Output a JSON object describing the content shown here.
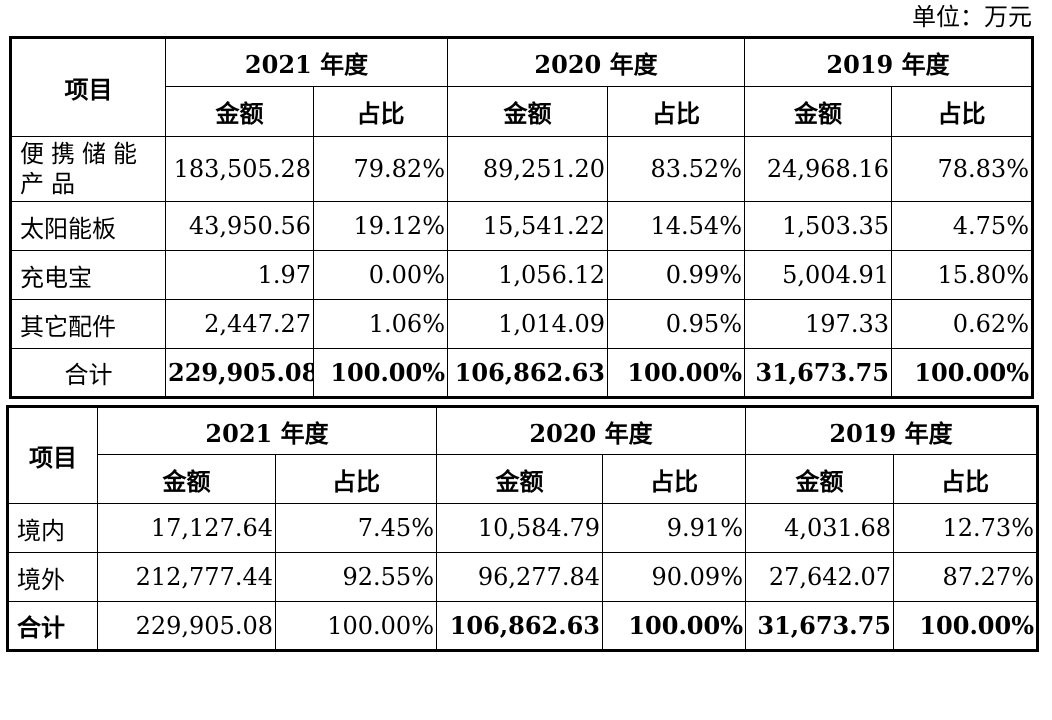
{
  "unit_label": "单位：万元",
  "table1": {
    "header": {
      "item": "项目",
      "years": [
        "2021 年度",
        "2020 年度",
        "2019 年度"
      ],
      "amount": "金额",
      "ratio": "占比"
    },
    "rows": [
      {
        "label": "便携储能产品",
        "values": [
          "183,505.28",
          "79.82%",
          "89,251.20",
          "83.52%",
          "24,968.16",
          "78.83%"
        ]
      },
      {
        "label": "太阳能板",
        "values": [
          "43,950.56",
          "19.12%",
          "15,541.22",
          "14.54%",
          "1,503.35",
          "4.75%"
        ]
      },
      {
        "label": "充电宝",
        "values": [
          "1.97",
          "0.00%",
          "1,056.12",
          "0.99%",
          "5,004.91",
          "15.80%"
        ]
      },
      {
        "label": "其它配件",
        "values": [
          "2,447.27",
          "1.06%",
          "1,014.09",
          "0.95%",
          "197.33",
          "0.62%"
        ]
      }
    ],
    "total": {
      "label": "合计",
      "values": [
        "229,905.08",
        "100.00%",
        "106,862.63",
        "100.00%",
        "31,673.75",
        "100.00%"
      ]
    }
  },
  "table2": {
    "header": {
      "item": "项目",
      "years": [
        "2021 年度",
        "2020 年度",
        "2019 年度"
      ],
      "amount": "金额",
      "ratio": "占比"
    },
    "rows": [
      {
        "label": "境内",
        "values": [
          "17,127.64",
          "7.45%",
          "10,584.79",
          "9.91%",
          "4,031.68",
          "12.73%"
        ]
      },
      {
        "label": "境外",
        "values": [
          "212,777.44",
          "92.55%",
          "96,277.84",
          "90.09%",
          "27,642.07",
          "87.27%"
        ]
      }
    ],
    "total": {
      "label": "合计",
      "values": [
        "229,905.08",
        "100.00%",
        "106,862.63",
        "100.00%",
        "31,673.75",
        "100.00%"
      ]
    }
  }
}
